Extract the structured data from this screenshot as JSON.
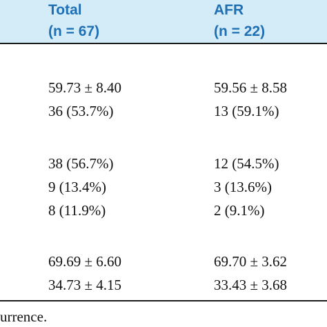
{
  "table": {
    "header": [
      [
        "Total",
        "(n = 67)"
      ],
      [
        "AFR",
        "(n = 22)"
      ]
    ],
    "groups": [
      [
        [
          "59.73 ± 8.40",
          "59.56 ± 8.58"
        ],
        [
          "36 (53.7%)",
          "13 (59.1%)"
        ]
      ],
      [
        [
          "38 (56.7%)",
          "12 (54.5%)"
        ],
        [
          "9 (13.4%)",
          "3 (13.6%)"
        ],
        [
          "8 (11.9%)",
          "2 (9.1%)"
        ]
      ],
      [
        [
          "69.69 ± 6.60",
          "69.70 ± 3.62"
        ],
        [
          "34.73 ± 4.15",
          "33.43 ± 3.68"
        ]
      ]
    ]
  },
  "footnote": "urrence."
}
